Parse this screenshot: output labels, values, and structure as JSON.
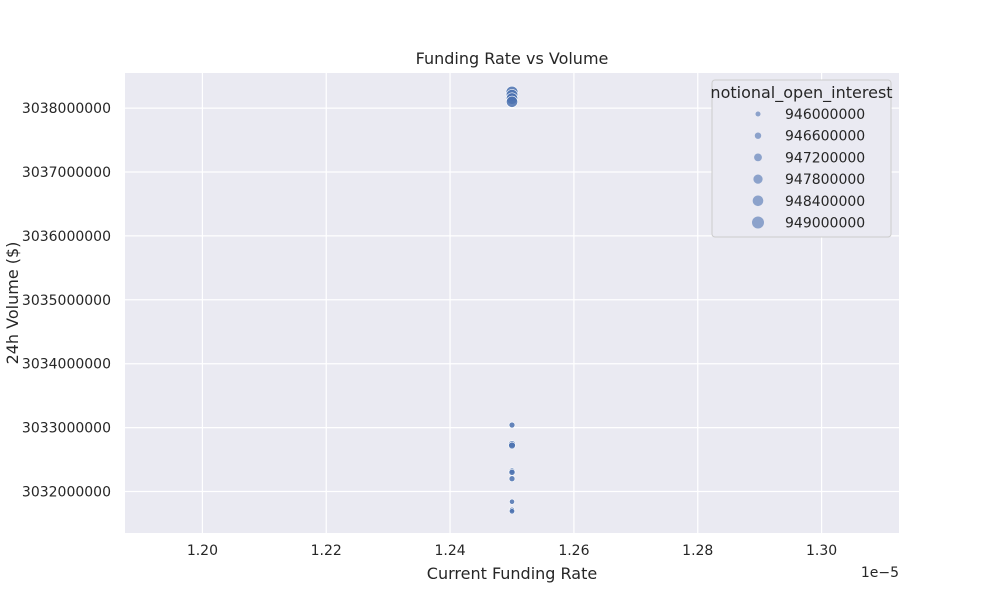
{
  "chart_data": {
    "type": "scatter",
    "title": "Funding Rate vs Volume",
    "xlabel": "Current Funding Rate",
    "ylabel": "24h Volume ($)",
    "x_offset_label": "1e−5",
    "x_ticks": [
      "1.20",
      "1.22",
      "1.24",
      "1.26",
      "1.28",
      "1.30"
    ],
    "x_tick_values": [
      1.2,
      1.22,
      1.24,
      1.26,
      1.28,
      1.3
    ],
    "y_ticks": [
      "3032000000",
      "3033000000",
      "3034000000",
      "3035000000",
      "3036000000",
      "3037000000",
      "3038000000"
    ],
    "y_tick_values": [
      3032000000,
      3033000000,
      3034000000,
      3035000000,
      3036000000,
      3037000000,
      3038000000
    ],
    "xlim": [
      1.1875,
      1.3125
    ],
    "ylim": [
      3031350000,
      3038550000
    ],
    "grid": true,
    "legend": {
      "title": "notional_open_interest",
      "placement": "top-right",
      "entries": [
        "946000000",
        "946600000",
        "947200000",
        "947800000",
        "948400000",
        "949000000"
      ],
      "entry_values": [
        946000000,
        946600000,
        947200000,
        947800000,
        948400000,
        949000000
      ]
    },
    "points": [
      {
        "x": 1.25,
        "y": 3038250000,
        "size": 949000000
      },
      {
        "x": 1.25,
        "y": 3038200000,
        "size": 948900000
      },
      {
        "x": 1.25,
        "y": 3038150000,
        "size": 948800000
      },
      {
        "x": 1.25,
        "y": 3038100000,
        "size": 948700000
      },
      {
        "x": 1.25,
        "y": 3033040000,
        "size": 946400000
      },
      {
        "x": 1.25,
        "y": 3032740000,
        "size": 946900000
      },
      {
        "x": 1.25,
        "y": 3032720000,
        "size": 946800000
      },
      {
        "x": 1.25,
        "y": 3032320000,
        "size": 946500000
      },
      {
        "x": 1.25,
        "y": 3032300000,
        "size": 946500000
      },
      {
        "x": 1.25,
        "y": 3032200000,
        "size": 946400000
      },
      {
        "x": 1.25,
        "y": 3031840000,
        "size": 946100000
      },
      {
        "x": 1.25,
        "y": 3031710000,
        "size": 946300000
      },
      {
        "x": 1.25,
        "y": 3031690000,
        "size": 946200000
      }
    ],
    "colors": {
      "background": "#eaeaf2",
      "grid": "#ffffff",
      "marker": "#4c72b0"
    }
  }
}
